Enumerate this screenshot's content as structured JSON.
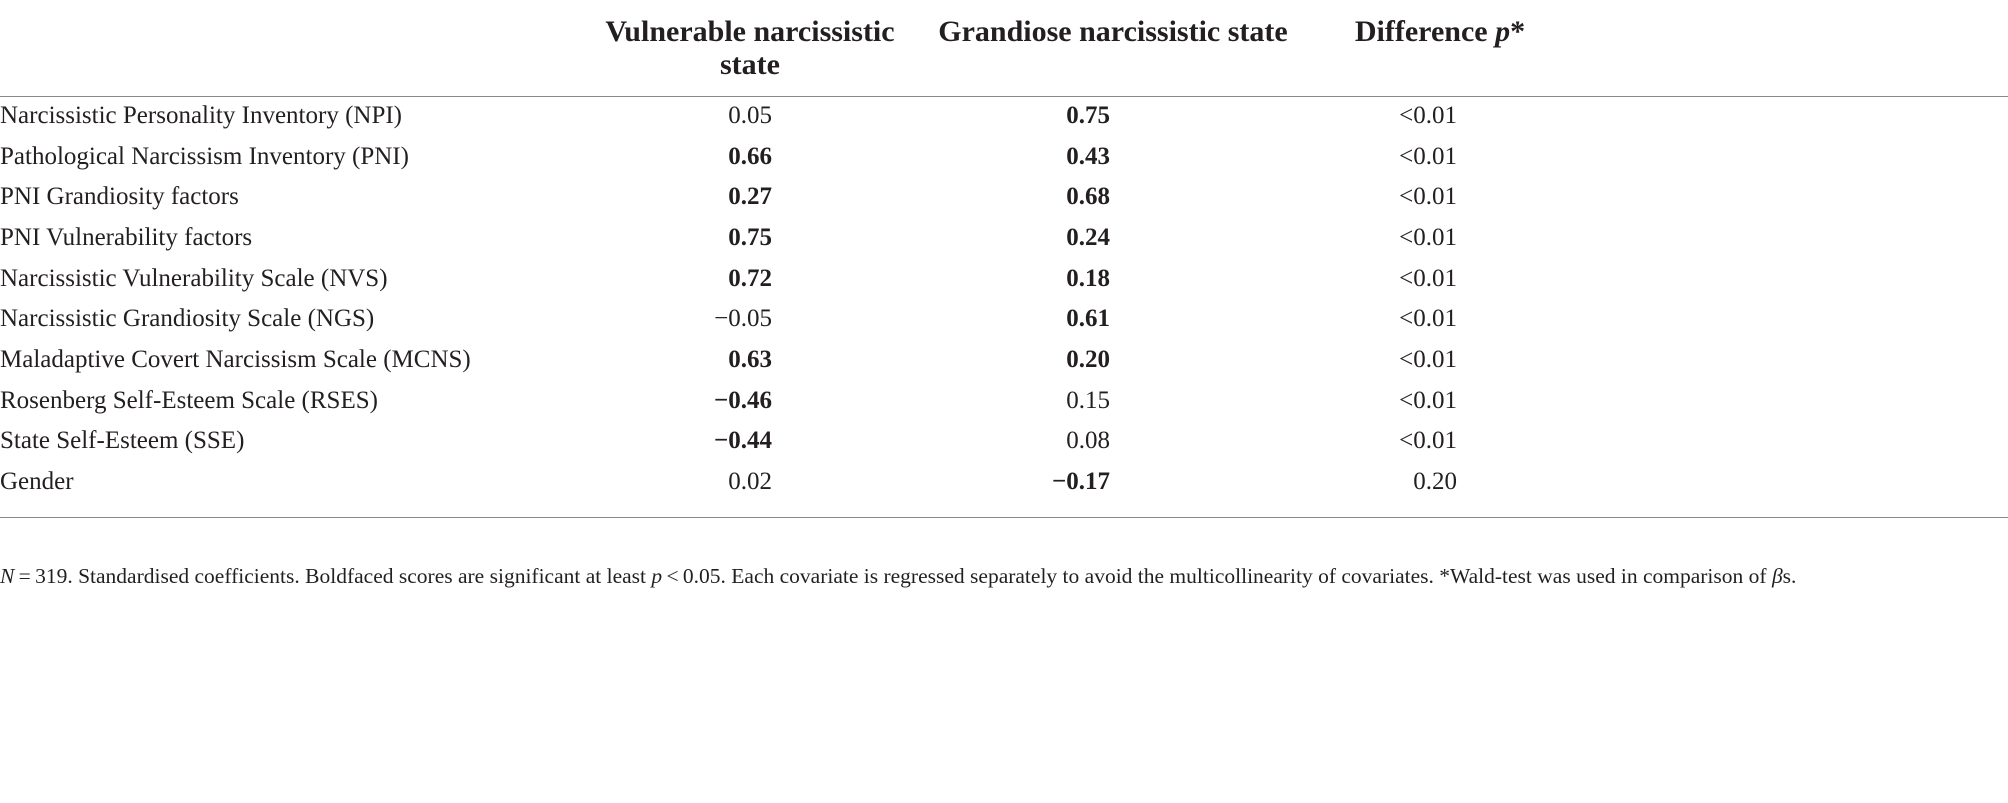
{
  "table": {
    "columns": [
      {
        "parts": [
          {
            "text": "Vulnerable narcissistic state"
          }
        ]
      },
      {
        "parts": [
          {
            "text": "Grandiose narcissistic state"
          }
        ]
      },
      {
        "parts": [
          {
            "text": "Difference"
          },
          {
            "text": "p",
            "italic": true
          },
          {
            "text": "*"
          }
        ]
      }
    ],
    "rows": [
      {
        "label": "Narcissistic Personality Inventory (NPI)",
        "cells": [
          {
            "text": "0.05",
            "bold": false
          },
          {
            "text": "0.75",
            "bold": true
          },
          {
            "text": "<0.01",
            "bold": false
          }
        ]
      },
      {
        "label": "Pathological Narcissism Inventory (PNI)",
        "cells": [
          {
            "text": "0.66",
            "bold": true
          },
          {
            "text": "0.43",
            "bold": true
          },
          {
            "text": "<0.01",
            "bold": false
          }
        ]
      },
      {
        "label": "PNI Grandiosity factors",
        "cells": [
          {
            "text": "0.27",
            "bold": true
          },
          {
            "text": "0.68",
            "bold": true
          },
          {
            "text": "<0.01",
            "bold": false
          }
        ]
      },
      {
        "label": "PNI Vulnerability factors",
        "cells": [
          {
            "text": "0.75",
            "bold": true
          },
          {
            "text": "0.24",
            "bold": true
          },
          {
            "text": "<0.01",
            "bold": false
          }
        ]
      },
      {
        "label": "Narcissistic Vulnerability Scale (NVS)",
        "cells": [
          {
            "text": "0.72",
            "bold": true
          },
          {
            "text": "0.18",
            "bold": true
          },
          {
            "text": "<0.01",
            "bold": false
          }
        ]
      },
      {
        "label": "Narcissistic Grandiosity Scale (NGS)",
        "cells": [
          {
            "text": "−0.05",
            "bold": false
          },
          {
            "text": "0.61",
            "bold": true
          },
          {
            "text": "<0.01",
            "bold": false
          }
        ]
      },
      {
        "label": "Maladaptive Covert Narcissism Scale (MCNS)",
        "cells": [
          {
            "text": "0.63",
            "bold": true
          },
          {
            "text": "0.20",
            "bold": true
          },
          {
            "text": "<0.01",
            "bold": false
          }
        ]
      },
      {
        "label": "Rosenberg Self-Esteem Scale (RSES)",
        "cells": [
          {
            "text": "−0.46",
            "bold": true
          },
          {
            "text": "0.15",
            "bold": false
          },
          {
            "text": "<0.01",
            "bold": false
          }
        ]
      },
      {
        "label": "State Self-Esteem (SSE)",
        "cells": [
          {
            "text": "−0.44",
            "bold": true
          },
          {
            "text": "0.08",
            "bold": false
          },
          {
            "text": "<0.01",
            "bold": false
          }
        ]
      },
      {
        "label": "Gender",
        "cells": [
          {
            "text": "0.02",
            "bold": false
          },
          {
            "text": "−0.17",
            "bold": true
          },
          {
            "text": "0.20",
            "bold": false
          }
        ]
      }
    ]
  },
  "footnote": {
    "parts": [
      {
        "text": "N",
        "italic": true
      },
      {
        "text": " = 319. Standardised coefficients. Boldfaced scores are significant at least "
      },
      {
        "text": "p",
        "italic": true
      },
      {
        "text": " < 0.05. Each covariate is regressed separately to avoid the multicollinearity of covariates. *Wald-test was used in comparison of "
      },
      {
        "text": "β",
        "italic": true
      },
      {
        "text": "s."
      }
    ]
  }
}
